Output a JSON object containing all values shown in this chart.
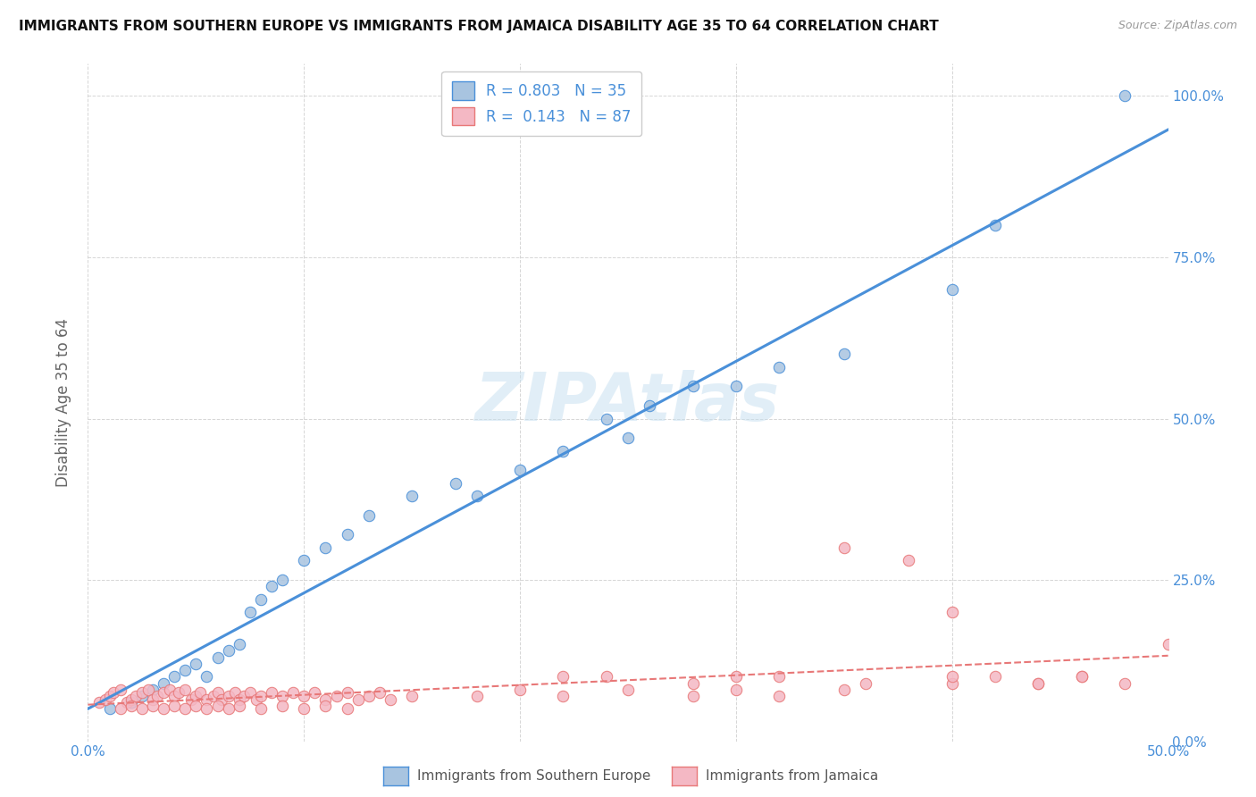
{
  "title": "IMMIGRANTS FROM SOUTHERN EUROPE VS IMMIGRANTS FROM JAMAICA DISABILITY AGE 35 TO 64 CORRELATION CHART",
  "source": "Source: ZipAtlas.com",
  "xlabel_bottom": "Immigrants from Southern Europe",
  "xlabel_bottom2": "Immigrants from Jamaica",
  "ylabel": "Disability Age 35 to 64",
  "xlim": [
    0.0,
    0.5
  ],
  "ylim": [
    0.0,
    1.05
  ],
  "blue_R": 0.803,
  "blue_N": 35,
  "pink_R": 0.143,
  "pink_N": 87,
  "blue_color": "#a8c4e0",
  "pink_color": "#f4b8c4",
  "blue_line_color": "#4a90d9",
  "pink_line_color": "#e87878",
  "blue_scatter_x": [
    0.01,
    0.02,
    0.025,
    0.03,
    0.035,
    0.04,
    0.045,
    0.05,
    0.055,
    0.06,
    0.065,
    0.07,
    0.075,
    0.08,
    0.085,
    0.09,
    0.1,
    0.11,
    0.12,
    0.13,
    0.15,
    0.17,
    0.18,
    0.2,
    0.22,
    0.24,
    0.25,
    0.26,
    0.28,
    0.3,
    0.32,
    0.35,
    0.4,
    0.42,
    0.48
  ],
  "blue_scatter_y": [
    0.05,
    0.06,
    0.07,
    0.08,
    0.09,
    0.1,
    0.11,
    0.12,
    0.1,
    0.13,
    0.14,
    0.15,
    0.2,
    0.22,
    0.24,
    0.25,
    0.28,
    0.3,
    0.32,
    0.35,
    0.38,
    0.4,
    0.38,
    0.42,
    0.45,
    0.5,
    0.47,
    0.52,
    0.55,
    0.55,
    0.58,
    0.6,
    0.7,
    0.8,
    1.0
  ],
  "pink_scatter_x": [
    0.005,
    0.008,
    0.01,
    0.012,
    0.015,
    0.018,
    0.02,
    0.022,
    0.025,
    0.028,
    0.03,
    0.032,
    0.035,
    0.038,
    0.04,
    0.042,
    0.045,
    0.048,
    0.05,
    0.052,
    0.055,
    0.058,
    0.06,
    0.062,
    0.065,
    0.068,
    0.07,
    0.072,
    0.075,
    0.078,
    0.08,
    0.085,
    0.09,
    0.095,
    0.1,
    0.105,
    0.11,
    0.115,
    0.12,
    0.125,
    0.13,
    0.135,
    0.14,
    0.015,
    0.02,
    0.025,
    0.03,
    0.035,
    0.04,
    0.045,
    0.05,
    0.055,
    0.06,
    0.065,
    0.07,
    0.08,
    0.09,
    0.1,
    0.11,
    0.12,
    0.15,
    0.18,
    0.2,
    0.22,
    0.25,
    0.28,
    0.3,
    0.32,
    0.35,
    0.38,
    0.4,
    0.42,
    0.44,
    0.46,
    0.22,
    0.24,
    0.28,
    0.32,
    0.36,
    0.4,
    0.44,
    0.46,
    0.48,
    0.5,
    0.3,
    0.35,
    0.4
  ],
  "pink_scatter_y": [
    0.06,
    0.065,
    0.07,
    0.075,
    0.08,
    0.06,
    0.065,
    0.07,
    0.075,
    0.08,
    0.065,
    0.07,
    0.075,
    0.08,
    0.07,
    0.075,
    0.08,
    0.065,
    0.07,
    0.075,
    0.065,
    0.07,
    0.075,
    0.065,
    0.07,
    0.075,
    0.065,
    0.07,
    0.075,
    0.065,
    0.07,
    0.075,
    0.07,
    0.075,
    0.07,
    0.075,
    0.065,
    0.07,
    0.075,
    0.065,
    0.07,
    0.075,
    0.065,
    0.05,
    0.055,
    0.05,
    0.055,
    0.05,
    0.055,
    0.05,
    0.055,
    0.05,
    0.055,
    0.05,
    0.055,
    0.05,
    0.055,
    0.05,
    0.055,
    0.05,
    0.07,
    0.07,
    0.08,
    0.07,
    0.08,
    0.07,
    0.08,
    0.07,
    0.08,
    0.28,
    0.09,
    0.1,
    0.09,
    0.1,
    0.1,
    0.1,
    0.09,
    0.1,
    0.09,
    0.1,
    0.09,
    0.1,
    0.09,
    0.15,
    0.1,
    0.3,
    0.2
  ]
}
